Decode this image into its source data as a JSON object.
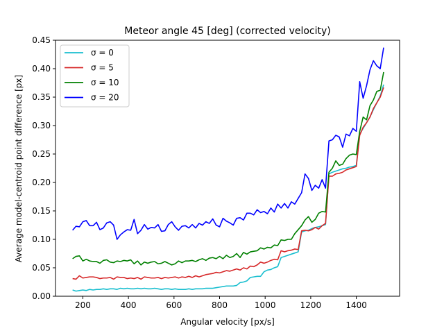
{
  "chart_data": {
    "type": "line",
    "title": "Meteor angle 45 [deg] (corrected velocity)",
    "xlabel": "Angular velocity [px/s]",
    "ylabel": "Average model-centroid point difference [px]",
    "xlim": [
      80,
      1590
    ],
    "ylim": [
      0,
      0.45
    ],
    "xticks": [
      200,
      400,
      600,
      800,
      1000,
      1200,
      1400
    ],
    "xtick_labels": [
      "200",
      "400",
      "600",
      "800",
      "1000",
      "1200",
      "1400"
    ],
    "yticks": [
      0.0,
      0.05,
      0.1,
      0.15,
      0.2,
      0.25,
      0.3,
      0.35,
      0.4,
      0.45
    ],
    "ytick_labels": [
      "0.00",
      "0.05",
      "0.10",
      "0.15",
      "0.20",
      "0.25",
      "0.30",
      "0.35",
      "0.40",
      "0.45"
    ],
    "grid": false,
    "legend_position": "upper-left",
    "x": [
      155,
      170,
      185,
      200,
      215,
      230,
      245,
      260,
      275,
      290,
      305,
      320,
      335,
      350,
      365,
      380,
      395,
      410,
      425,
      440,
      455,
      470,
      485,
      500,
      515,
      530,
      545,
      560,
      575,
      590,
      605,
      620,
      635,
      650,
      665,
      680,
      695,
      710,
      725,
      740,
      755,
      770,
      785,
      800,
      815,
      830,
      845,
      860,
      875,
      890,
      905,
      920,
      935,
      950,
      965,
      980,
      995,
      1010,
      1025,
      1040,
      1055,
      1070,
      1085,
      1100,
      1115,
      1130,
      1145,
      1160,
      1175,
      1190,
      1205,
      1220,
      1235,
      1250,
      1265,
      1280,
      1295,
      1310,
      1325,
      1340,
      1355,
      1370,
      1385,
      1400,
      1415,
      1430,
      1445,
      1460,
      1475,
      1490,
      1505,
      1520
    ],
    "series": [
      {
        "name": "σ = 0",
        "color": "#17becf",
        "values": [
          0.011,
          0.009,
          0.01,
          0.011,
          0.01,
          0.012,
          0.011,
          0.012,
          0.012,
          0.013,
          0.012,
          0.013,
          0.013,
          0.012,
          0.014,
          0.013,
          0.014,
          0.013,
          0.013,
          0.014,
          0.013,
          0.014,
          0.013,
          0.013,
          0.014,
          0.013,
          0.012,
          0.013,
          0.013,
          0.012,
          0.013,
          0.012,
          0.012,
          0.012,
          0.013,
          0.012,
          0.013,
          0.013,
          0.013,
          0.014,
          0.014,
          0.014,
          0.015,
          0.016,
          0.017,
          0.018,
          0.018,
          0.018,
          0.019,
          0.024,
          0.025,
          0.027,
          0.033,
          0.034,
          0.035,
          0.035,
          0.043,
          0.046,
          0.047,
          0.05,
          0.052,
          0.068,
          0.07,
          0.072,
          0.074,
          0.076,
          0.078,
          0.113,
          0.115,
          0.116,
          0.119,
          0.121,
          0.122,
          0.124,
          0.126,
          0.215,
          0.218,
          0.22,
          0.222,
          0.224,
          0.225,
          0.227,
          0.228,
          0.23,
          0.285,
          0.295,
          0.305,
          0.315,
          0.328,
          0.34,
          0.352,
          0.372
        ]
      },
      {
        "name": "σ = 5",
        "color": "#d62728",
        "values": [
          0.031,
          0.03,
          0.036,
          0.032,
          0.033,
          0.034,
          0.034,
          0.033,
          0.031,
          0.032,
          0.032,
          0.033,
          0.03,
          0.034,
          0.033,
          0.033,
          0.031,
          0.032,
          0.031,
          0.033,
          0.03,
          0.034,
          0.033,
          0.032,
          0.032,
          0.033,
          0.031,
          0.033,
          0.032,
          0.033,
          0.034,
          0.032,
          0.034,
          0.033,
          0.035,
          0.033,
          0.036,
          0.034,
          0.036,
          0.038,
          0.039,
          0.04,
          0.042,
          0.041,
          0.043,
          0.045,
          0.044,
          0.046,
          0.048,
          0.046,
          0.05,
          0.048,
          0.053,
          0.052,
          0.055,
          0.06,
          0.058,
          0.06,
          0.063,
          0.065,
          0.064,
          0.08,
          0.078,
          0.08,
          0.081,
          0.083,
          0.082,
          0.115,
          0.116,
          0.115,
          0.117,
          0.121,
          0.118,
          0.124,
          0.128,
          0.211,
          0.211,
          0.215,
          0.216,
          0.218,
          0.222,
          0.224,
          0.226,
          0.228,
          0.283,
          0.297,
          0.305,
          0.315,
          0.33,
          0.34,
          0.35,
          0.367
        ]
      },
      {
        "name": "σ = 10",
        "color": "#008000",
        "values": [
          0.066,
          0.07,
          0.071,
          0.062,
          0.065,
          0.062,
          0.061,
          0.061,
          0.058,
          0.063,
          0.064,
          0.06,
          0.059,
          0.062,
          0.061,
          0.063,
          0.062,
          0.064,
          0.057,
          0.062,
          0.055,
          0.06,
          0.058,
          0.06,
          0.061,
          0.057,
          0.058,
          0.061,
          0.058,
          0.055,
          0.057,
          0.062,
          0.059,
          0.062,
          0.062,
          0.063,
          0.061,
          0.064,
          0.066,
          0.063,
          0.067,
          0.068,
          0.066,
          0.07,
          0.066,
          0.072,
          0.068,
          0.07,
          0.075,
          0.068,
          0.077,
          0.074,
          0.078,
          0.079,
          0.08,
          0.085,
          0.083,
          0.086,
          0.085,
          0.09,
          0.089,
          0.099,
          0.098,
          0.1,
          0.1,
          0.11,
          0.117,
          0.124,
          0.134,
          0.14,
          0.13,
          0.135,
          0.146,
          0.149,
          0.148,
          0.218,
          0.225,
          0.238,
          0.23,
          0.232,
          0.242,
          0.248,
          0.25,
          0.249,
          0.29,
          0.315,
          0.31,
          0.335,
          0.345,
          0.36,
          0.362,
          0.394
        ]
      },
      {
        "name": "σ = 20",
        "color": "#0000ff",
        "values": [
          0.116,
          0.123,
          0.122,
          0.131,
          0.133,
          0.124,
          0.124,
          0.13,
          0.117,
          0.12,
          0.129,
          0.131,
          0.125,
          0.1,
          0.108,
          0.113,
          0.117,
          0.116,
          0.135,
          0.11,
          0.116,
          0.126,
          0.118,
          0.121,
          0.12,
          0.126,
          0.114,
          0.115,
          0.126,
          0.131,
          0.122,
          0.116,
          0.123,
          0.124,
          0.12,
          0.126,
          0.12,
          0.128,
          0.125,
          0.131,
          0.128,
          0.136,
          0.125,
          0.122,
          0.137,
          0.132,
          0.129,
          0.125,
          0.137,
          0.138,
          0.134,
          0.146,
          0.146,
          0.143,
          0.152,
          0.147,
          0.149,
          0.145,
          0.155,
          0.148,
          0.162,
          0.155,
          0.163,
          0.155,
          0.166,
          0.162,
          0.172,
          0.182,
          0.215,
          0.207,
          0.186,
          0.195,
          0.19,
          0.205,
          0.19,
          0.273,
          0.275,
          0.283,
          0.28,
          0.262,
          0.285,
          0.282,
          0.295,
          0.29,
          0.377,
          0.348,
          0.37,
          0.398,
          0.414,
          0.405,
          0.4,
          0.437
        ]
      }
    ]
  }
}
